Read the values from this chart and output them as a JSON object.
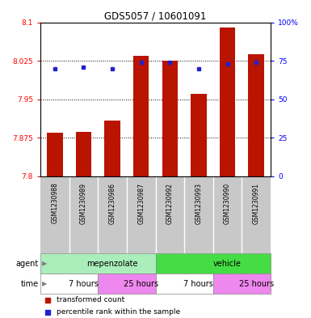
{
  "title": "GDS5057 / 10601091",
  "samples": [
    "GSM1230988",
    "GSM1230989",
    "GSM1230986",
    "GSM1230987",
    "GSM1230992",
    "GSM1230993",
    "GSM1230990",
    "GSM1230991"
  ],
  "bar_values": [
    7.885,
    7.886,
    7.908,
    8.035,
    8.025,
    7.96,
    8.09,
    8.038
  ],
  "bar_bottom": 7.8,
  "percentile_values": [
    70,
    71,
    70,
    74,
    74,
    70,
    73,
    74
  ],
  "ylim_left": [
    7.8,
    8.1
  ],
  "ylim_right": [
    0,
    100
  ],
  "yticks_left": [
    7.8,
    7.875,
    7.95,
    8.025,
    8.1
  ],
  "yticks_right": [
    0,
    25,
    50,
    75,
    100
  ],
  "bar_color": "#b81400",
  "dot_color": "#2222cc",
  "agent_groups": [
    {
      "label": "mepenzolate",
      "start": 0,
      "end": 4,
      "color": "#aaeebb"
    },
    {
      "label": "vehicle",
      "start": 4,
      "end": 8,
      "color": "#44dd44"
    }
  ],
  "time_groups": [
    {
      "label": "7 hours",
      "start": 0,
      "end": 2,
      "color": "#ffffff"
    },
    {
      "label": "25 hours",
      "start": 2,
      "end": 4,
      "color": "#ee88ee"
    },
    {
      "label": "7 hours",
      "start": 4,
      "end": 6,
      "color": "#ffffff"
    },
    {
      "label": "25 hours",
      "start": 6,
      "end": 8,
      "color": "#ee88ee"
    }
  ],
  "legend_items": [
    {
      "label": "transformed count",
      "color": "#b81400"
    },
    {
      "label": "percentile rank within the sample",
      "color": "#2222cc"
    }
  ],
  "agent_label": "agent",
  "time_label": "time",
  "bar_width": 0.55
}
